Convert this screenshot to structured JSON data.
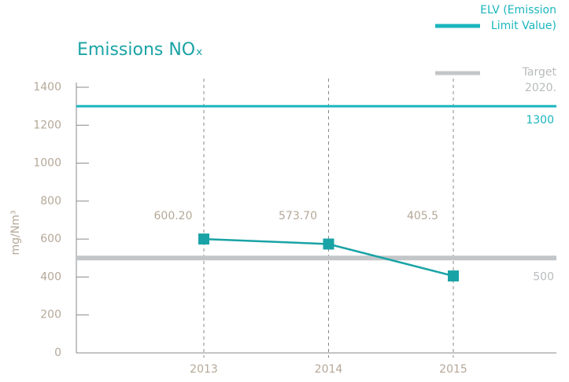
{
  "chart_data": {
    "type": "line",
    "title": "Emissions NOₓ",
    "ylabel": "mg/Nm³",
    "categories": [
      "2013",
      "2014",
      "2015"
    ],
    "values": [
      600.2,
      573.7,
      405.5
    ],
    "value_labels": [
      "600.20",
      "573.70",
      "405.5"
    ],
    "color": "#1aa3a6",
    "ylim": [
      0,
      1400
    ],
    "yticks": [
      0,
      200,
      400,
      600,
      800,
      1000,
      1200,
      1400
    ],
    "reference_lines": [
      {
        "name": "ELV (Emission Limit Value)",
        "value": 1300,
        "label": "1300",
        "color": "#1ab5bd"
      },
      {
        "name": "Target 2020.",
        "value": 500,
        "label": "500",
        "color": "#c3c6c8"
      }
    ]
  }
}
